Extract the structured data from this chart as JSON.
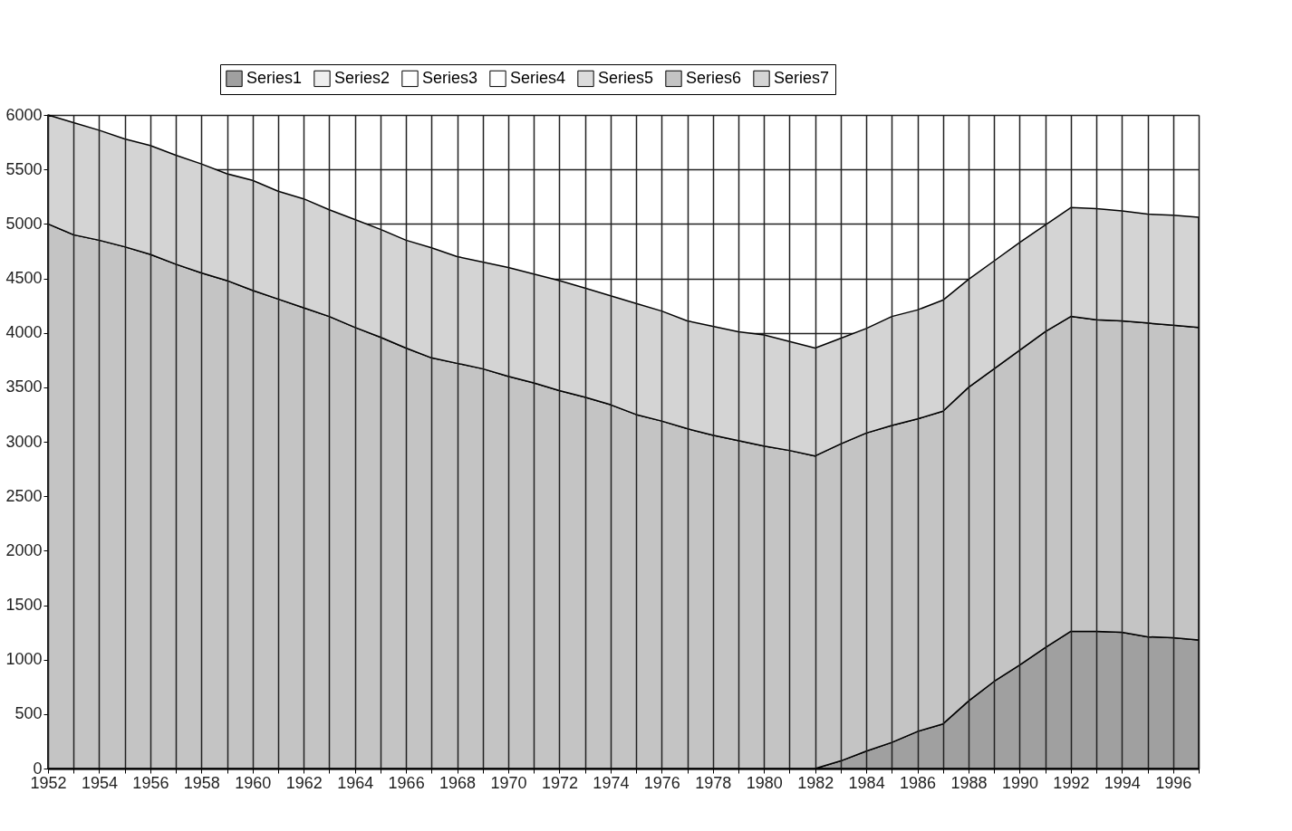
{
  "chart_data": {
    "type": "area",
    "stacked": true,
    "grid": true,
    "legend": "top",
    "x": [
      1952,
      1953,
      1954,
      1955,
      1956,
      1957,
      1958,
      1959,
      1960,
      1961,
      1962,
      1963,
      1964,
      1965,
      1966,
      1967,
      1968,
      1969,
      1970,
      1971,
      1972,
      1973,
      1974,
      1975,
      1976,
      1977,
      1978,
      1979,
      1980,
      1981,
      1982,
      1983,
      1984,
      1985,
      1986,
      1987,
      1988,
      1989,
      1990,
      1991,
      1992,
      1993,
      1994,
      1995,
      1996,
      1997
    ],
    "xlim": [
      1952,
      1997
    ],
    "xticks": [
      1952,
      {
        "value": 1953,
        "label": null
      },
      1954,
      {
        "value": 1955,
        "label": null
      },
      1956,
      {
        "value": 1957,
        "label": null
      },
      1958,
      {
        "value": 1959,
        "label": null
      },
      1960,
      {
        "value": 1961,
        "label": null
      },
      1962,
      {
        "value": 1963,
        "label": null
      },
      1964,
      {
        "value": 1965,
        "label": null
      },
      1966,
      {
        "value": 1967,
        "label": null
      },
      1968,
      {
        "value": 1969,
        "label": null
      },
      1970,
      {
        "value": 1971,
        "label": null
      },
      1972,
      {
        "value": 1973,
        "label": null
      },
      1974,
      {
        "value": 1975,
        "label": null
      },
      1976,
      {
        "value": 1977,
        "label": null
      },
      1978,
      {
        "value": 1979,
        "label": null
      },
      1980,
      {
        "value": 1981,
        "label": null
      },
      1982,
      {
        "value": 1983,
        "label": null
      },
      1984,
      {
        "value": 1985,
        "label": null
      },
      1986,
      {
        "value": 1987,
        "label": null
      },
      1988,
      {
        "value": 1989,
        "label": null
      },
      1990,
      {
        "value": 1991,
        "label": null
      },
      1992,
      {
        "value": 1993,
        "label": null
      },
      1994,
      {
        "value": 1995,
        "label": null
      },
      1996,
      {
        "value": 1997,
        "label": null
      }
    ],
    "ylim": [
      0,
      6000
    ],
    "yticks": [
      0,
      500,
      1000,
      1500,
      2000,
      2500,
      3000,
      3500,
      4000,
      4500,
      5000,
      5500,
      6000
    ],
    "series": [
      {
        "name": "Series1",
        "color": "#a0a0a0",
        "values": [
          0,
          0,
          0,
          0,
          0,
          0,
          0,
          0,
          0,
          0,
          0,
          0,
          0,
          0,
          0,
          0,
          0,
          0,
          0,
          0,
          0,
          0,
          0,
          0,
          0,
          0,
          0,
          0,
          0,
          0,
          0,
          70,
          160,
          240,
          340,
          410,
          620,
          800,
          950,
          1110,
          1260,
          1260,
          1250,
          1210,
          1200,
          1180
        ]
      },
      {
        "name": "Series2",
        "color": "#eeeeee",
        "values": [
          null,
          null,
          null,
          null,
          null,
          null,
          null,
          null,
          null,
          null,
          null,
          null,
          null,
          null,
          null,
          null,
          null,
          null,
          null,
          null,
          null,
          null,
          null,
          null,
          null,
          null,
          null,
          null,
          null,
          null,
          null,
          null,
          null,
          null,
          null,
          null,
          null,
          null,
          null,
          null,
          null,
          null,
          null,
          null,
          null,
          null
        ]
      },
      {
        "name": "Series3",
        "color": "#ffffff",
        "values": [
          null,
          null,
          null,
          null,
          null,
          null,
          null,
          null,
          null,
          null,
          null,
          null,
          null,
          null,
          null,
          null,
          null,
          null,
          null,
          null,
          null,
          null,
          null,
          null,
          null,
          null,
          null,
          null,
          null,
          null,
          null,
          null,
          null,
          null,
          null,
          null,
          null,
          null,
          null,
          null,
          null,
          null,
          null,
          null,
          null,
          null
        ]
      },
      {
        "name": "Series4",
        "color": "#fefefe",
        "values": [
          null,
          null,
          null,
          null,
          null,
          null,
          null,
          null,
          null,
          null,
          null,
          null,
          null,
          null,
          null,
          null,
          null,
          null,
          null,
          null,
          null,
          null,
          null,
          null,
          null,
          null,
          null,
          null,
          null,
          null,
          null,
          null,
          null,
          null,
          null,
          null,
          null,
          null,
          null,
          null,
          null,
          null,
          null,
          null,
          null,
          null
        ]
      },
      {
        "name": "Series5",
        "color": "#dcdcdc",
        "values": [
          null,
          null,
          null,
          null,
          null,
          null,
          null,
          null,
          null,
          null,
          null,
          null,
          null,
          null,
          null,
          null,
          null,
          null,
          null,
          null,
          null,
          null,
          null,
          null,
          null,
          null,
          null,
          null,
          null,
          null,
          null,
          null,
          null,
          null,
          null,
          null,
          null,
          null,
          null,
          null,
          null,
          null,
          null,
          null,
          null,
          null
        ]
      },
      {
        "name": "Series6",
        "color": "#c4c4c4",
        "values": [
          5000,
          4900,
          4850,
          4790,
          4720,
          4630,
          4550,
          4480,
          4390,
          4310,
          4230,
          4150,
          4050,
          3960,
          3860,
          3770,
          3720,
          3670,
          3600,
          3540,
          3470,
          3410,
          3340,
          3250,
          3190,
          3120,
          3060,
          3010,
          2960,
          2920,
          2870,
          2910,
          2920,
          2910,
          2870,
          2870,
          2880,
          2870,
          2890,
          2900,
          2890,
          2860,
          2860,
          2880,
          2870,
          2870
        ]
      },
      {
        "name": "Series7",
        "color": "#d4d4d4",
        "values": [
          1000,
          1030,
          1010,
          990,
          1000,
          1000,
          1000,
          980,
          1010,
          990,
          1000,
          980,
          990,
          990,
          990,
          1010,
          980,
          980,
          1000,
          1000,
          1010,
          1000,
          1000,
          1020,
          1010,
          990,
          1000,
          1000,
          1020,
          1000,
          990,
          970,
          960,
          1000,
          1000,
          1020,
          990,
          990,
          990,
          980,
          1000,
          1020,
          1010,
          1000,
          1010,
          1010
        ]
      }
    ]
  }
}
